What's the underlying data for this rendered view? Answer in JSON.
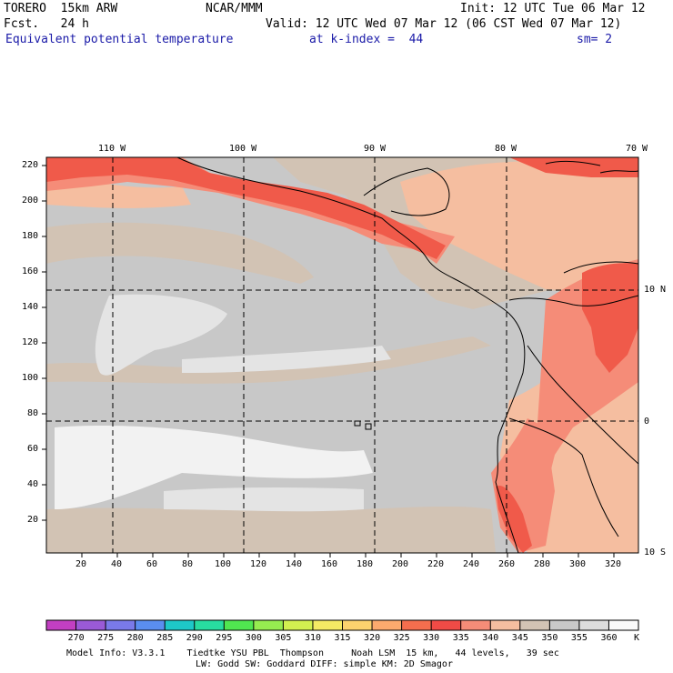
{
  "header": {
    "model": "TORERO  15km ARW",
    "center": "NCAR/MMM",
    "init": "Init: 12 UTC Tue 06 Mar 12",
    "fcst": "Fcst.   24 h",
    "valid": "Valid: 12 UTC Wed 07 Mar 12 (06 CST Wed 07 Mar 12)",
    "field": "Equivalent potential temperature",
    "level": "at k-index =  44",
    "smooth": "sm= 2"
  },
  "map": {
    "lon_labels": [
      "110 W",
      "100 W",
      "90 W",
      "80 W",
      "70 W"
    ],
    "lat_labels": [
      "10 N",
      "0",
      "10 S"
    ],
    "y_ticks": [
      "20",
      "40",
      "60",
      "80",
      "100",
      "120",
      "140",
      "160",
      "180",
      "200",
      "220"
    ],
    "x_ticks": [
      "20",
      "40",
      "60",
      "80",
      "100",
      "120",
      "140",
      "160",
      "180",
      "200",
      "220",
      "240",
      "260",
      "280",
      "300",
      "320"
    ]
  },
  "legend": {
    "labels": [
      "270",
      "275",
      "280",
      "285",
      "290",
      "295",
      "300",
      "305",
      "310",
      "315",
      "320",
      "325",
      "330",
      "335",
      "340",
      "345",
      "350",
      "355",
      "360"
    ],
    "unit": "K",
    "colors": [
      "#c23fc2",
      "#9a5ad6",
      "#7a7ae8",
      "#5a8ef0",
      "#1ec8c8",
      "#28dca0",
      "#50e650",
      "#96ec50",
      "#d2f050",
      "#f5ea64",
      "#fcd26e",
      "#fcaa6e",
      "#f56e4e",
      "#f04b46",
      "#f58c78",
      "#f5bea0",
      "#d2c3b4",
      "#c8c8c8",
      "#dcdcdc",
      "#fafafa"
    ]
  },
  "footer": {
    "line1": "Model Info: V3.3.1    Tiedtke YSU PBL  Thompson     Noah LSM  15 km,   44 levels,   39 sec",
    "line2": "LW: Godd SW: Goddard DIFF: simple KM: 2D Smagor"
  }
}
